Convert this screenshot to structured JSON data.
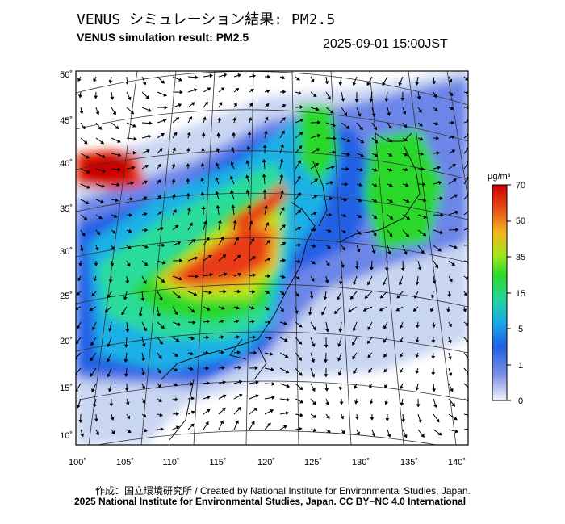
{
  "header": {
    "title_jp": "VENUS シミュレーション結果: PM2.5",
    "title_en": "VENUS simulation result: PM2.5",
    "datetime": "2025-09-01 15:00JST"
  },
  "map": {
    "lat_labels": [
      "50˚",
      "45˚",
      "40˚",
      "35˚",
      "30˚",
      "25˚",
      "20˚",
      "15˚",
      "10˚"
    ],
    "lon_labels": [
      "100˚",
      "105˚",
      "110˚",
      "115˚",
      "120˚",
      "125˚",
      "130˚",
      "135˚",
      "140˚"
    ]
  },
  "legend": {
    "unit": "μg/m³",
    "ticks": [
      "70",
      "50",
      "35",
      "15",
      "5",
      "1",
      "0"
    ],
    "colors": [
      "#d7e0f5",
      "#5f7ee8",
      "#1f5fe6",
      "#1ab4e8",
      "#2edc9a",
      "#2ad82a",
      "#b8e81e",
      "#f0a020",
      "#e83a14",
      "#cc0000"
    ]
  },
  "footer": {
    "credit_line1": "作成：国立環境研究所 / Created by National Institute for Environmental Studies, Japan.",
    "credit_line2": "2025 National Institute for Environmental Studies, Japan. CC BY−NC 4.0 International"
  }
}
